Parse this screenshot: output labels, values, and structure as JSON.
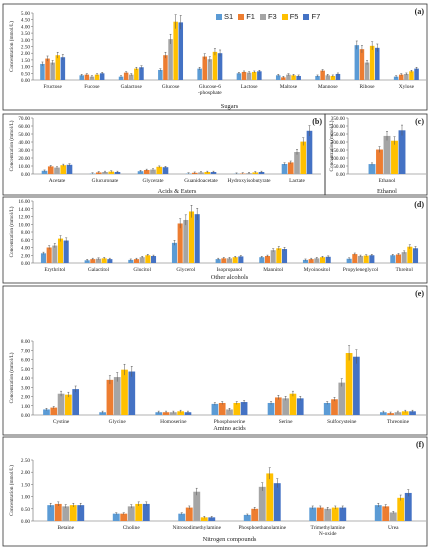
{
  "legend": [
    "S1",
    "F1",
    "F3",
    "F5",
    "F7"
  ],
  "colors": {
    "S1": "#5b9bd5",
    "F1": "#ed7d31",
    "F3": "#a5a5a5",
    "F5": "#ffc000",
    "F7": "#4472c4"
  },
  "chart_data": [
    {
      "type": "bar",
      "panel": "(a)",
      "title": "",
      "xlabel": "Sugars",
      "ylabel": "Concentration (mmol/L)",
      "ylim": [
        0,
        5
      ],
      "yticks": [
        0,
        0.5,
        1,
        1.5,
        2,
        2.5,
        3,
        3.5,
        4,
        4.5,
        5
      ],
      "tick_format": "2",
      "categories": [
        "Fructose",
        "Fucose",
        "Galactose",
        "Glucose",
        "Glucose-6\n-phosphate",
        "Lactose",
        "Maltose",
        "Mannose",
        "Ribose",
        "Xylose"
      ],
      "series": [
        {
          "name": "S1",
          "values": [
            1.2,
            0.35,
            0.25,
            0.75,
            0.85,
            0.5,
            0.35,
            0.3,
            2.6,
            0.25
          ]
        },
        {
          "name": "F1",
          "values": [
            1.6,
            0.4,
            0.55,
            1.85,
            1.75,
            0.6,
            0.2,
            0.7,
            2.3,
            0.4
          ]
        },
        {
          "name": "F3",
          "values": [
            1.3,
            0.25,
            0.4,
            3.05,
            1.55,
            0.55,
            0.4,
            0.35,
            1.3,
            0.45
          ]
        },
        {
          "name": "F5",
          "values": [
            1.85,
            0.4,
            0.85,
            4.35,
            2.1,
            0.6,
            0.35,
            0.3,
            2.55,
            0.65
          ]
        },
        {
          "name": "F7",
          "values": [
            1.7,
            0.5,
            0.95,
            4.3,
            2.0,
            0.65,
            0.3,
            0.45,
            2.4,
            0.85
          ]
        }
      ]
    },
    {
      "type": "bar",
      "panel": "(b)",
      "title": "",
      "xlabel": "Acids & Esters",
      "ylabel": "Concentration (mmol/L)",
      "ylim": [
        0,
        70
      ],
      "yticks": [
        0,
        10,
        20,
        30,
        40,
        50,
        60,
        70
      ],
      "tick_format": "2",
      "categories": [
        "Acetate",
        "Glucuronate",
        "Glycerate",
        "Guanidoacetate",
        "Hydroxyisobutyrate",
        "Lactate"
      ],
      "series": [
        {
          "name": "S1",
          "values": [
            4.0,
            0.5,
            3.5,
            0.5,
            0.3,
            12.5
          ]
        },
        {
          "name": "F1",
          "values": [
            9.5,
            2.0,
            5.0,
            1.5,
            0.6,
            14.5
          ]
        },
        {
          "name": "F3",
          "values": [
            8.0,
            2.5,
            5.5,
            2.0,
            1.0,
            27.5
          ]
        },
        {
          "name": "F5",
          "values": [
            11.0,
            3.0,
            9.0,
            2.5,
            2.0,
            40.5
          ]
        },
        {
          "name": "F7",
          "values": [
            11.5,
            2.5,
            8.5,
            2.5,
            2.5,
            54.0
          ]
        }
      ]
    },
    {
      "type": "bar",
      "panel": "(c)",
      "title": "",
      "xlabel": "Ethanol",
      "ylabel": "Concentration (mmol/L)",
      "ylim": [
        0,
        350
      ],
      "yticks": [
        0,
        50,
        100,
        150,
        200,
        250,
        300,
        350
      ],
      "tick_format": "2",
      "categories": [
        "Ethanol"
      ],
      "series": [
        {
          "name": "S1",
          "values": [
            62
          ]
        },
        {
          "name": "F1",
          "values": [
            153
          ]
        },
        {
          "name": "F3",
          "values": [
            238
          ]
        },
        {
          "name": "F5",
          "values": [
            208
          ]
        },
        {
          "name": "F7",
          "values": [
            273
          ]
        }
      ]
    },
    {
      "type": "bar",
      "panel": "(d)",
      "title": "",
      "xlabel": "Other alcohols",
      "ylabel": "Concentration (mmol/L)",
      "ylim": [
        0,
        16
      ],
      "yticks": [
        0,
        2,
        4,
        6,
        8,
        10,
        12,
        14,
        16
      ],
      "tick_format": "2",
      "categories": [
        "Erythritol",
        "Galactitol",
        "Glucitol",
        "Glycerol",
        "Isopropanol",
        "Mannitol",
        "Myoinositol",
        "Propyleneglycol",
        "Threitol"
      ],
      "series": [
        {
          "name": "S1",
          "values": [
            2.5,
            0.7,
            0.8,
            5.2,
            1.0,
            1.5,
            0.8,
            1.1,
            2.0
          ]
        },
        {
          "name": "F1",
          "values": [
            4.0,
            1.0,
            1.0,
            10.2,
            1.2,
            1.8,
            1.0,
            2.3,
            2.2
          ]
        },
        {
          "name": "F3",
          "values": [
            4.5,
            1.1,
            1.5,
            11.1,
            1.2,
            3.3,
            1.2,
            1.8,
            2.8
          ]
        },
        {
          "name": "F5",
          "values": [
            6.3,
            1.2,
            2.0,
            13.3,
            1.5,
            3.8,
            1.5,
            1.9,
            4.2
          ]
        },
        {
          "name": "F7",
          "values": [
            5.8,
            1.0,
            1.8,
            12.6,
            1.7,
            3.6,
            1.6,
            2.0,
            3.8
          ]
        }
      ]
    },
    {
      "type": "bar",
      "panel": "(e)",
      "title": "",
      "xlabel": "Amino acids",
      "ylabel": "Concentration (mmol/L)",
      "ylim": [
        0,
        8
      ],
      "yticks": [
        0,
        1,
        2,
        3,
        4,
        5,
        6,
        7,
        8
      ],
      "tick_format": "2",
      "categories": [
        "Cystine",
        "Glycine",
        "Homoserine",
        "Phosphoserine",
        "Serine",
        "Sulfocysteine",
        "Threonine"
      ],
      "series": [
        {
          "name": "S1",
          "values": [
            0.6,
            0.3,
            0.3,
            1.2,
            1.3,
            1.3,
            0.3
          ]
        },
        {
          "name": "F1",
          "values": [
            0.8,
            3.8,
            0.3,
            1.3,
            1.9,
            1.7,
            0.2
          ]
        },
        {
          "name": "F3",
          "values": [
            2.3,
            4.1,
            0.3,
            0.6,
            1.8,
            3.5,
            0.3
          ]
        },
        {
          "name": "F5",
          "values": [
            2.2,
            4.9,
            0.4,
            1.3,
            2.3,
            6.7,
            0.4
          ]
        },
        {
          "name": "F7",
          "values": [
            2.8,
            4.7,
            0.3,
            1.4,
            1.8,
            6.3,
            0.4
          ]
        }
      ]
    },
    {
      "type": "bar",
      "panel": "(f)",
      "title": "",
      "xlabel": "Nitrogen compounds",
      "ylabel": "Concentration (mmol/L)",
      "ylim": [
        0,
        2.5
      ],
      "yticks": [
        0,
        0.5,
        1,
        1.5,
        2,
        2.5
      ],
      "tick_format": "2",
      "categories": [
        "Betaine",
        "Choline",
        "Nitrosodimethylamine",
        "Phosphoethanolamine",
        "Trimethylamine\nN-oxide",
        "Urea"
      ],
      "series": [
        {
          "name": "S1",
          "values": [
            0.65,
            0.3,
            0.3,
            0.25,
            0.55,
            0.65
          ]
        },
        {
          "name": "F1",
          "values": [
            0.7,
            0.3,
            0.55,
            0.5,
            0.55,
            0.6
          ]
        },
        {
          "name": "F3",
          "values": [
            0.6,
            0.6,
            1.2,
            1.4,
            0.5,
            0.35
          ]
        },
        {
          "name": "F5",
          "values": [
            0.65,
            0.7,
            0.15,
            1.95,
            0.55,
            0.95
          ]
        },
        {
          "name": "F7",
          "values": [
            0.65,
            0.7,
            0.15,
            1.55,
            0.55,
            1.15
          ]
        }
      ]
    }
  ]
}
